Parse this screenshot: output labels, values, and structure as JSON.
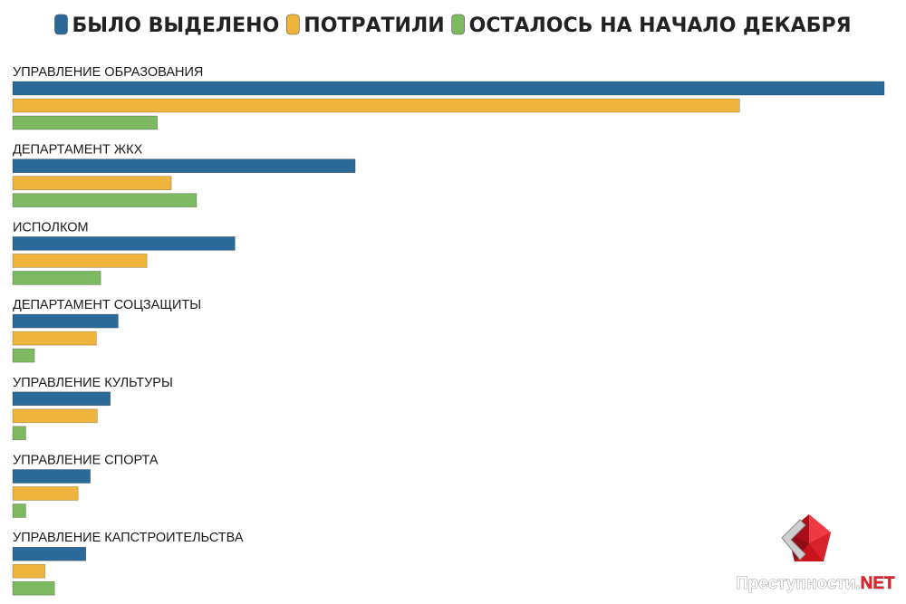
{
  "chart_data": {
    "type": "bar",
    "orientation": "horizontal",
    "title": "",
    "xlabel": "",
    "ylabel": "",
    "xlim": [
      0,
      100
    ],
    "grid": false,
    "legend_position": "top-center",
    "categories": [
      "УПРАВЛЕНИЕ ОБРАЗОВАНИЯ",
      "ДЕПАРТАМЕНТ ЖКХ",
      "ИСПОЛКОМ",
      "ДЕПАРТАМЕНТ СОЦЗАЩИТЫ",
      "УПРАВЛЕНИЕ КУЛЬТУРЫ",
      "УПРАВЛЕНИЕ СПОРТА",
      "УПРАВЛЕНИЕ КАПСТРОИТЕЛЬСТВА"
    ],
    "series": [
      {
        "name": "БЫЛО ВЫДЕЛЕНО",
        "color": "#2b6a98",
        "values": [
          100,
          39.3,
          25.5,
          12.1,
          11.2,
          8.9,
          8.4
        ]
      },
      {
        "name": "ПОТРАТИЛИ",
        "color": "#f0b43c",
        "values": [
          83.4,
          18.2,
          15.4,
          9.6,
          9.7,
          7.5,
          3.7
        ]
      },
      {
        "name": "ОСТАЛОСЬ НА НАЧАЛО ДЕКАБРЯ",
        "color": "#7cb960",
        "values": [
          16.6,
          21.1,
          10.1,
          2.5,
          1.5,
          1.5,
          4.8
        ]
      }
    ]
  },
  "watermark": {
    "text_main": "Преступности.",
    "text_accent": "NET",
    "accent_color": "#e8202a",
    "icon": "red-crystal-logo-icon"
  }
}
